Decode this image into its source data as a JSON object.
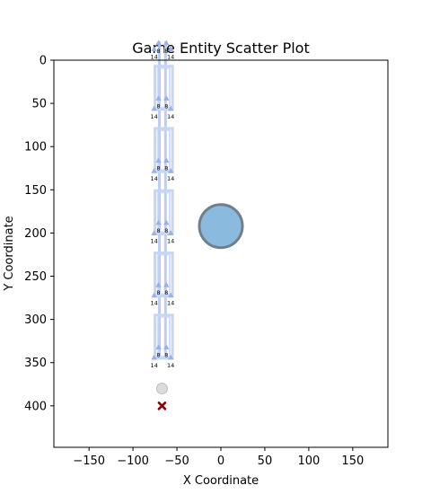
{
  "chart_data": {
    "type": "scatter",
    "title": "Game Entity Scatter Plot",
    "xlabel": "X Coordinate",
    "ylabel": "Y Coordinate",
    "xlim": [
      -190,
      190
    ],
    "ylim": [
      448,
      0
    ],
    "y_inverted": true,
    "grid": false,
    "x_ticks": [
      -150,
      -100,
      -50,
      0,
      50,
      100,
      150
    ],
    "x_tick_labels": [
      "−150",
      "−100",
      "−50",
      "0",
      "50",
      "100",
      "150"
    ],
    "y_ticks": [
      0,
      50,
      100,
      150,
      200,
      250,
      300,
      350,
      400
    ],
    "y_tick_labels": [
      "0",
      "50",
      "100",
      "150",
      "200",
      "250",
      "300",
      "350",
      "400"
    ],
    "colors": {
      "grid_boxes": "#c8d6f5",
      "ladder_rails": "#b8c8f4",
      "markers": "#9ab0ea",
      "circle_fill": "#8bbadf",
      "circle_edge": "#6f7f8c",
      "ghost": "#bdbdbd",
      "cross": "#8b0000"
    },
    "columns": [
      {
        "x": -75,
        "rail_left": -70,
        "rail_right": -63
      },
      {
        "x": -55
      }
    ],
    "tiles": [
      {
        "y_top": 7,
        "y_bottom": 57
      },
      {
        "y_top": 79,
        "y_bottom": 129
      },
      {
        "y_top": 151,
        "y_bottom": 201
      },
      {
        "y_top": 223,
        "y_bottom": 273
      },
      {
        "y_top": 295,
        "y_bottom": 345
      }
    ],
    "marker_groups": [
      {
        "upper_y": -20,
        "lower_y": -13,
        "upper_label": "8",
        "lower_label": "14"
      },
      {
        "upper_y": 44,
        "lower_y": 56,
        "upper_label": "8",
        "lower_label": "14"
      },
      {
        "upper_y": 116,
        "lower_y": 128,
        "upper_label": "8",
        "lower_label": "14"
      },
      {
        "upper_y": 188,
        "lower_y": 200,
        "upper_label": "8",
        "lower_label": "14"
      },
      {
        "upper_y": 260,
        "lower_y": 272,
        "upper_label": "8",
        "lower_label": "14"
      },
      {
        "upper_y": 332,
        "lower_y": 344,
        "upper_label": "8",
        "lower_label": "14"
      }
    ],
    "marker_pairs": {
      "upper_x": [
        -71,
        -62
      ],
      "lower_x": [
        -76,
        -57
      ]
    },
    "big_circle": {
      "x": 0,
      "y": 192,
      "radius": 24
    },
    "ghost_point": {
      "x": -67,
      "y": 380
    },
    "cross_point": {
      "x": -67,
      "y": 400
    }
  }
}
